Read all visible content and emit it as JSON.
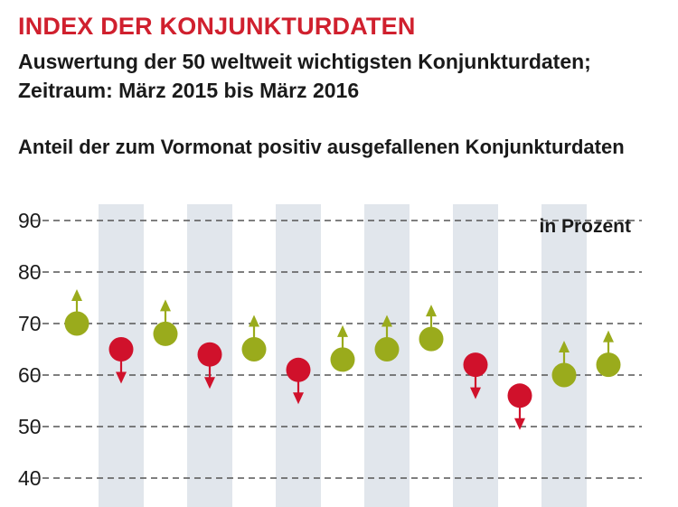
{
  "title": "INDEX DER KONJUNKTURDATEN",
  "subtitle_line1": "Auswertung der 50 weltweit wichtigsten Konjunkturdaten;",
  "subtitle_line2": "Zeitraum: März 2015 bis März 2016",
  "caption": "Anteil der zum Vormonat positiv ausgefallenen Konjunkturdaten",
  "colors": {
    "up": "#9aab1c",
    "down": "#d0112b",
    "band": "#e1e6ec",
    "grid": "#555555"
  },
  "chart_data": {
    "type": "scatter",
    "unit_label": "in Prozent",
    "ylim": [
      40,
      90
    ],
    "yticks": [
      40,
      50,
      60,
      70,
      80,
      90
    ],
    "grid": "dashed horizontal",
    "alternating_bands": true,
    "series": [
      {
        "values": [
          70,
          65,
          68,
          64,
          65,
          61,
          63,
          65,
          67,
          62,
          56,
          60,
          62
        ],
        "direction": [
          "up",
          "down",
          "up",
          "down",
          "up",
          "down",
          "up",
          "up",
          "up",
          "down",
          "down",
          "up",
          "up"
        ]
      }
    ]
  }
}
